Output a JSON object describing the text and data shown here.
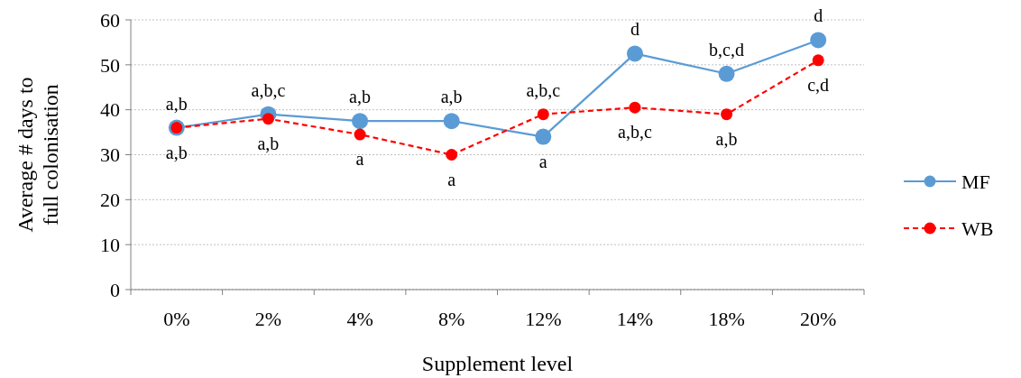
{
  "chart_data": {
    "type": "line",
    "xlabel": "Supplement level",
    "ylabel": "Average # days to full colonisation",
    "categories": [
      "0%",
      "2%",
      "4%",
      "8%",
      "12%",
      "14%",
      "18%",
      "20%"
    ],
    "series": [
      {
        "name": "MF",
        "color": "#5b9bd5",
        "line_style": "solid",
        "values": [
          36,
          39,
          37.5,
          37.5,
          34,
          52.5,
          48,
          55.5
        ]
      },
      {
        "name": "WB",
        "color": "#ff0000",
        "line_style": "dashed",
        "values": [
          36,
          38,
          34.5,
          30,
          39,
          40.5,
          39,
          51
        ]
      }
    ],
    "ylim": [
      0,
      60
    ],
    "yticks": [
      0,
      10,
      20,
      30,
      40,
      50,
      60
    ],
    "grid": "y",
    "legend": "right",
    "marker": "circle",
    "annotations": [
      {
        "text": "a,b",
        "x": "0%",
        "y": 36
      },
      {
        "text": "a,b",
        "x": "0%",
        "y": 36
      },
      {
        "text": "a,b,c",
        "x": "2%",
        "y": 39
      },
      {
        "text": "a,b",
        "x": "2%",
        "y": 38
      },
      {
        "text": "a,b",
        "x": "4%",
        "y": 37.5
      },
      {
        "text": "a",
        "x": "4%",
        "y": 34.5
      },
      {
        "text": "a,b",
        "x": "8%",
        "y": 37.5
      },
      {
        "text": "a",
        "x": "8%",
        "y": 30
      },
      {
        "text": "a,b,c",
        "x": "12%",
        "y": 39
      },
      {
        "text": "a",
        "x": "12%",
        "y": 34
      },
      {
        "text": "d",
        "x": "14%",
        "y": 52.5
      },
      {
        "text": "a,b,c",
        "x": "14%",
        "y": 40.5
      },
      {
        "text": "b,c,d",
        "x": "18%",
        "y": 48
      },
      {
        "text": "a,b",
        "x": "18%",
        "y": 39
      },
      {
        "text": "d",
        "x": "20%",
        "y": 55.5
      },
      {
        "text": "c,d",
        "x": "20%",
        "y": 51
      }
    ]
  }
}
